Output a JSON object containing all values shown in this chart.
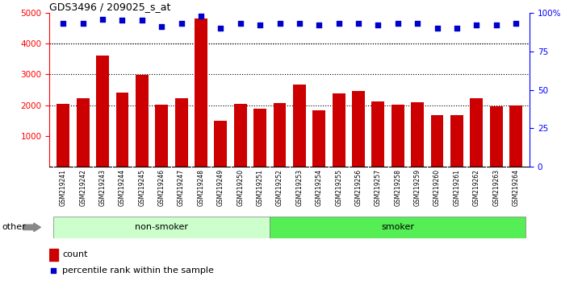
{
  "title": "GDS3496 / 209025_s_at",
  "categories": [
    "GSM219241",
    "GSM219242",
    "GSM219243",
    "GSM219244",
    "GSM219245",
    "GSM219246",
    "GSM219247",
    "GSM219248",
    "GSM219249",
    "GSM219250",
    "GSM219251",
    "GSM219252",
    "GSM219253",
    "GSM219254",
    "GSM219255",
    "GSM219256",
    "GSM219257",
    "GSM219258",
    "GSM219259",
    "GSM219260",
    "GSM219261",
    "GSM219262",
    "GSM219263",
    "GSM219264"
  ],
  "counts": [
    2050,
    2230,
    3620,
    2400,
    2980,
    2010,
    2230,
    4820,
    1490,
    2030,
    1880,
    2080,
    2680,
    1840,
    2370,
    2460,
    2110,
    2020,
    2100,
    1670,
    1680,
    2230,
    1970,
    1980
  ],
  "percentile_ranks": [
    93,
    93,
    96,
    95,
    95,
    91,
    93,
    98,
    90,
    93,
    92,
    93,
    93,
    92,
    93,
    93,
    92,
    93,
    93,
    90,
    90,
    92,
    92,
    93
  ],
  "groups": [
    {
      "label": "non-smoker",
      "start": 0,
      "end": 11,
      "color": "#ccffcc"
    },
    {
      "label": "smoker",
      "start": 11,
      "end": 24,
      "color": "#55ee55"
    }
  ],
  "bar_color": "#cc0000",
  "dot_color": "#0000cc",
  "ylim_left": [
    0,
    5000
  ],
  "ylim_right": [
    0,
    100
  ],
  "yticks_left": [
    1000,
    2000,
    3000,
    4000,
    5000
  ],
  "yticks_right": [
    0,
    25,
    50,
    75,
    100
  ],
  "grid_values": [
    2000,
    3000,
    4000
  ],
  "plot_bg": "#ffffff",
  "xtick_bg": "#c8c8c8",
  "legend_count_label": "count",
  "legend_pct_label": "percentile rank within the sample",
  "other_label": "other"
}
